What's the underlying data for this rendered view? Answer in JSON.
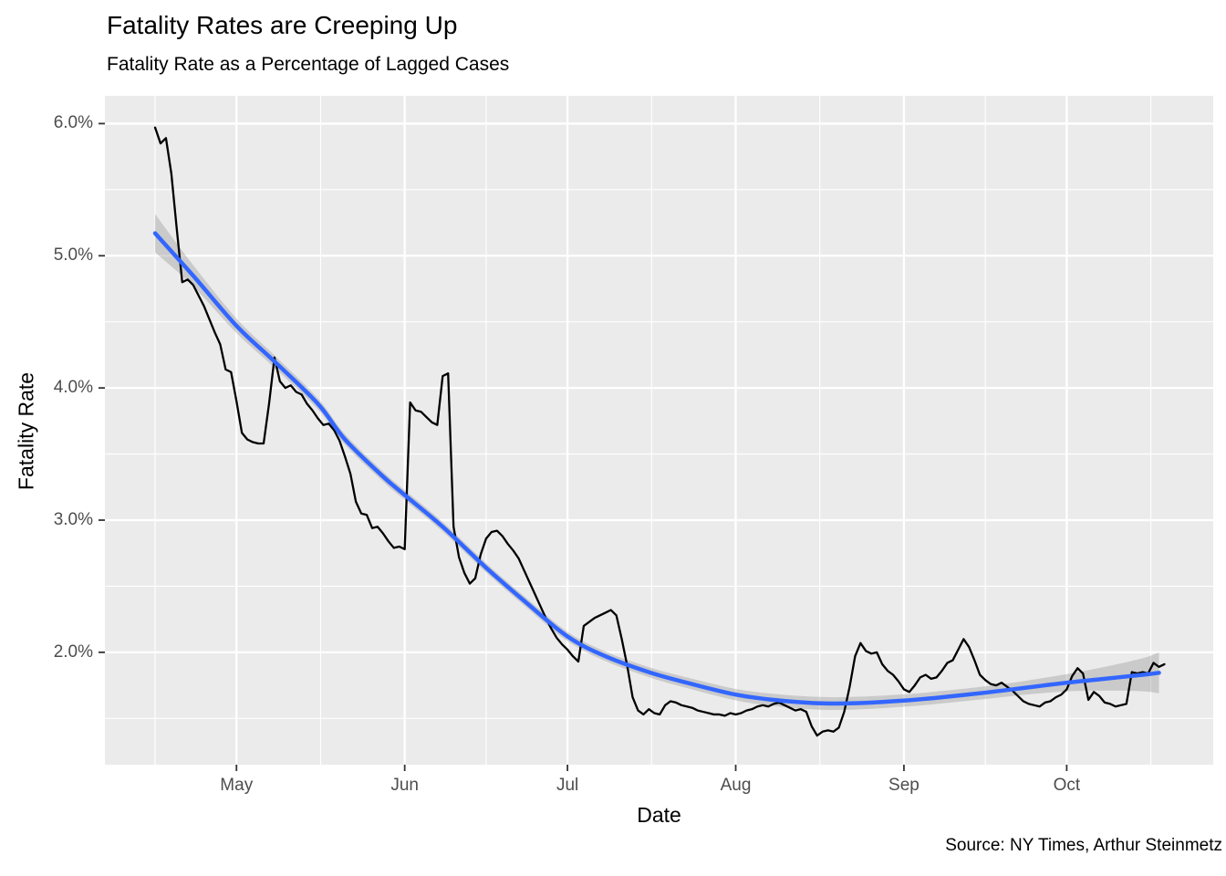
{
  "chart_data": {
    "type": "line",
    "title": "Fatality Rates are Creeping Up",
    "subtitle": "Fatality Rate as a Percentage of Lagged Cases",
    "caption": "Source: NY Times, Arthur Steinmetz",
    "xlabel": "Date",
    "ylabel": "Fatality Rate",
    "x_start_date": "2020-04-16",
    "x_unit": "day",
    "xlim_days": [
      -9.25,
      195
    ],
    "ylim": [
      1.15,
      6.21
    ],
    "grid": true,
    "legend": "none",
    "panel_bg": "#EBEBEB",
    "grid_color": "#FFFFFF",
    "tick_color": "#333333",
    "tick_label_color": "#4D4D4D",
    "y_axis": {
      "ticks": [
        {
          "value": 2.0,
          "label": "2.0%"
        },
        {
          "value": 3.0,
          "label": "3.0%"
        },
        {
          "value": 4.0,
          "label": "4.0%"
        },
        {
          "value": 5.0,
          "label": "5.0%"
        },
        {
          "value": 6.0,
          "label": "6.0%"
        }
      ],
      "minor": [
        1.5,
        2.5,
        3.5,
        4.5,
        5.5
      ]
    },
    "x_axis": {
      "ticks": [
        {
          "day": 15,
          "label": "May"
        },
        {
          "day": 46,
          "label": "Jun"
        },
        {
          "day": 76,
          "label": "Jul"
        },
        {
          "day": 107,
          "label": "Aug"
        },
        {
          "day": 138,
          "label": "Sep"
        },
        {
          "day": 168,
          "label": "Oct"
        }
      ],
      "minor_days": [
        0,
        30.5,
        61,
        91.5,
        122.5,
        153,
        183.5
      ]
    },
    "series": [
      {
        "name": "daily-fatality-rate",
        "color": "#000000",
        "width": 2.3,
        "start_day": 0,
        "step": 1,
        "values": [
          5.97,
          5.85,
          5.89,
          5.62,
          5.2,
          4.8,
          4.82,
          4.78,
          4.7,
          4.62,
          4.52,
          4.42,
          4.33,
          4.14,
          4.12,
          3.9,
          3.66,
          3.61,
          3.59,
          3.58,
          3.58,
          3.88,
          4.23,
          4.05,
          4.0,
          4.02,
          3.97,
          3.95,
          3.88,
          3.83,
          3.77,
          3.72,
          3.73,
          3.68,
          3.6,
          3.48,
          3.35,
          3.14,
          3.05,
          3.04,
          2.94,
          2.95,
          2.9,
          2.84,
          2.79,
          2.8,
          2.78,
          3.89,
          3.83,
          3.82,
          3.78,
          3.74,
          3.72,
          4.09,
          4.11,
          2.95,
          2.72,
          2.6,
          2.52,
          2.56,
          2.74,
          2.86,
          2.91,
          2.92,
          2.88,
          2.82,
          2.77,
          2.71,
          2.62,
          2.53,
          2.44,
          2.35,
          2.26,
          2.18,
          2.11,
          2.06,
          2.02,
          1.97,
          1.93,
          2.2,
          2.23,
          2.26,
          2.28,
          2.3,
          2.32,
          2.28,
          2.1,
          1.9,
          1.66,
          1.56,
          1.53,
          1.57,
          1.54,
          1.53,
          1.6,
          1.63,
          1.62,
          1.6,
          1.59,
          1.58,
          1.56,
          1.55,
          1.54,
          1.53,
          1.53,
          1.52,
          1.54,
          1.53,
          1.54,
          1.56,
          1.57,
          1.59,
          1.6,
          1.59,
          1.61,
          1.62,
          1.6,
          1.58,
          1.56,
          1.57,
          1.55,
          1.44,
          1.37,
          1.4,
          1.41,
          1.4,
          1.43,
          1.55,
          1.74,
          1.97,
          2.07,
          2.01,
          1.99,
          2.0,
          1.91,
          1.86,
          1.83,
          1.78,
          1.72,
          1.7,
          1.75,
          1.81,
          1.83,
          1.8,
          1.81,
          1.86,
          1.92,
          1.94,
          2.02,
          2.1,
          2.04,
          1.94,
          1.83,
          1.79,
          1.76,
          1.75,
          1.77,
          1.74,
          1.71,
          1.67,
          1.63,
          1.61,
          1.6,
          1.59,
          1.62,
          1.63,
          1.66,
          1.68,
          1.72,
          1.82,
          1.88,
          1.84,
          1.64,
          1.7,
          1.67,
          1.62,
          1.61,
          1.59,
          1.6,
          1.61,
          1.85,
          1.84,
          1.85,
          1.84,
          1.92,
          1.89,
          1.91
        ]
      },
      {
        "name": "loess-smooth",
        "color": "#3366FF",
        "width": 4.5,
        "band_color": "#999999",
        "band_opacity": 0.4,
        "points": [
          {
            "d": 0,
            "v": 5.17,
            "w": 0.145
          },
          {
            "d": 7,
            "v": 4.85,
            "w": 0.08
          },
          {
            "d": 15,
            "v": 4.47,
            "w": 0.055
          },
          {
            "d": 22,
            "v": 4.2,
            "w": 0.047
          },
          {
            "d": 30,
            "v": 3.88,
            "w": 0.042
          },
          {
            "d": 35,
            "v": 3.61,
            "w": 0.04
          },
          {
            "d": 42,
            "v": 3.33,
            "w": 0.038
          },
          {
            "d": 46,
            "v": 3.19,
            "w": 0.037
          },
          {
            "d": 53,
            "v": 2.95,
            "w": 0.036
          },
          {
            "d": 61,
            "v": 2.64,
            "w": 0.035
          },
          {
            "d": 68,
            "v": 2.39,
            "w": 0.035
          },
          {
            "d": 76,
            "v": 2.12,
            "w": 0.035
          },
          {
            "d": 83,
            "v": 1.97,
            "w": 0.036
          },
          {
            "d": 91,
            "v": 1.85,
            "w": 0.038
          },
          {
            "d": 98,
            "v": 1.77,
            "w": 0.04
          },
          {
            "d": 107,
            "v": 1.68,
            "w": 0.043
          },
          {
            "d": 114,
            "v": 1.64,
            "w": 0.046
          },
          {
            "d": 122,
            "v": 1.615,
            "w": 0.048
          },
          {
            "d": 129,
            "v": 1.615,
            "w": 0.048
          },
          {
            "d": 138,
            "v": 1.635,
            "w": 0.047
          },
          {
            "d": 145,
            "v": 1.66,
            "w": 0.047
          },
          {
            "d": 153,
            "v": 1.695,
            "w": 0.048
          },
          {
            "d": 160,
            "v": 1.73,
            "w": 0.052
          },
          {
            "d": 168,
            "v": 1.77,
            "w": 0.065
          },
          {
            "d": 175,
            "v": 1.8,
            "w": 0.09
          },
          {
            "d": 182,
            "v": 1.83,
            "w": 0.125
          },
          {
            "d": 185,
            "v": 1.845,
            "w": 0.155
          }
        ]
      }
    ]
  }
}
